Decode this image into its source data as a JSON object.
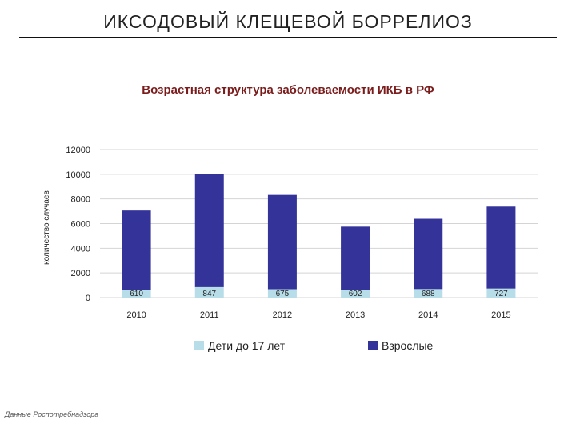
{
  "slide": {
    "title": "ИКСОДОВЫЙ КЛЕЩЕВОЙ БОРРЕЛИОЗ",
    "source": "Данные Роспотребнадзора"
  },
  "chart_data": {
    "type": "bar",
    "stacked": true,
    "title": "Возрастная структура заболеваемости ИКБ в РФ",
    "ylabel": "количество случаев",
    "xlabel": "",
    "categories": [
      "2010",
      "2011",
      "2012",
      "2013",
      "2014",
      "2015"
    ],
    "ylim": [
      0,
      12000
    ],
    "yticks": [
      0,
      2000,
      4000,
      6000,
      8000,
      10000,
      12000
    ],
    "grid": true,
    "legend_position": "bottom",
    "series": [
      {
        "name": "Дети до 17 лет",
        "color": "#b7dde8",
        "values": [
          610,
          847,
          675,
          602,
          688,
          727
        ],
        "labels": [
          "610",
          "847",
          "675",
          "602",
          "688",
          "727"
        ]
      },
      {
        "name": "Взрослые",
        "color": "#333399",
        "values": [
          6450,
          9200,
          7650,
          5150,
          5700,
          6650
        ]
      }
    ]
  }
}
